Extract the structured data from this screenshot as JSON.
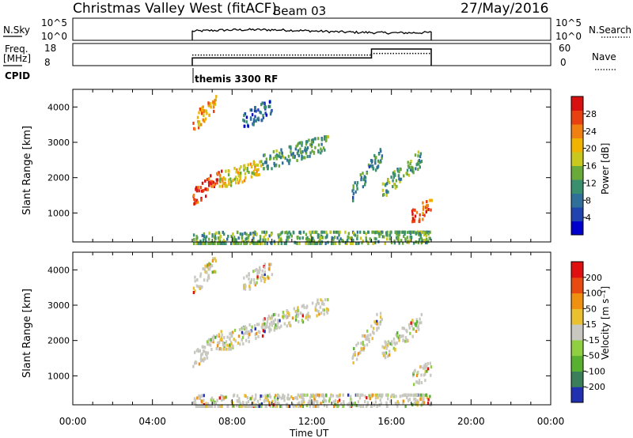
{
  "header": {
    "station": "Christmas Valley West (fitACF)",
    "beam": "Beam 03",
    "date": "27/May/2016"
  },
  "scan_panels": {
    "nsky_label": "N.Sky",
    "nsky_ticks": [
      "10^5",
      "10^0"
    ],
    "nsearch_label": "N.Search",
    "freq_label_1": "Freq.",
    "freq_label_2": "[MHz]",
    "freq_ticks": [
      "18",
      "8"
    ],
    "nave_label": "Nave",
    "nave_ticks": [
      "60",
      "0"
    ],
    "cpid_label": "CPID",
    "cpid_text": "themis 3300 RF"
  },
  "x_axis": {
    "label": "Time UT",
    "ticks": [
      "00:00",
      "04:00",
      "08:00",
      "12:00",
      "16:00",
      "20:00",
      "00:00"
    ]
  },
  "chart_data": [
    {
      "type": "heatmap",
      "panel": "power",
      "ylabel": "Slant Range [km]",
      "y_ticks": [
        "1000",
        "2000",
        "3000",
        "4000"
      ],
      "ylim": [
        180,
        4500
      ],
      "xlim_hours": [
        0,
        24
      ],
      "colorbar": {
        "label": "Power [dB]",
        "ticks": [
          "28",
          "24",
          "20",
          "16",
          "12",
          "8",
          "4"
        ],
        "colors": [
          "#0000cc",
          "#1f44b0",
          "#2f6f9a",
          "#3a8f6e",
          "#6aaa3a",
          "#c8c81e",
          "#f0b400",
          "#f08010",
          "#e84010",
          "#d81010"
        ]
      },
      "regions": [
        {
          "x": [
            6.0,
            7.5
          ],
          "y": [
            1300,
            2300
          ],
          "level": 0.9
        },
        {
          "x": [
            7.3,
            9.5
          ],
          "y": [
            1800,
            2500
          ],
          "level": 0.6
        },
        {
          "x": [
            9.5,
            12.8
          ],
          "y": [
            2300,
            3200
          ],
          "level": 0.35
        },
        {
          "x": [
            6.0,
            7.2
          ],
          "y": [
            3400,
            4400
          ],
          "level": 0.7
        },
        {
          "x": [
            8.5,
            10.0
          ],
          "y": [
            3500,
            4200
          ],
          "level": 0.2
        },
        {
          "x": [
            14.0,
            15.5
          ],
          "y": [
            1300,
            3000
          ],
          "level": 0.3
        },
        {
          "x": [
            15.5,
            17.5
          ],
          "y": [
            1500,
            2800
          ],
          "level": 0.4
        },
        {
          "x": [
            17.0,
            18.0
          ],
          "y": [
            800,
            1400
          ],
          "level": 0.85
        },
        {
          "x": [
            6.0,
            18.0
          ],
          "y": [
            180,
            500
          ],
          "level": 0.4
        }
      ]
    },
    {
      "type": "heatmap",
      "panel": "velocity",
      "ylabel": "Slant Range [km]",
      "y_ticks": [
        "1000",
        "2000",
        "3000",
        "4000"
      ],
      "ylim": [
        180,
        4500
      ],
      "xlim_hours": [
        0,
        24
      ],
      "colorbar": {
        "label": "Velocity [m s⁻¹]",
        "ticks": [
          "200",
          "100",
          "50",
          "15",
          "-15",
          "-50",
          "-100",
          "-200"
        ],
        "colors": [
          "#2030b0",
          "#3a7f5a",
          "#58b030",
          "#90d040",
          "#c8c8c0",
          "#e8c030",
          "#f09010",
          "#e84a10",
          "#e01010"
        ]
      },
      "regions": [
        {
          "x": [
            6.0,
            7.5
          ],
          "y": [
            1300,
            2300
          ],
          "level": 0.5
        },
        {
          "x": [
            7.3,
            9.5
          ],
          "y": [
            1800,
            2500
          ],
          "level": 0.5
        },
        {
          "x": [
            9.5,
            12.8
          ],
          "y": [
            2300,
            3200
          ],
          "level": 0.5
        },
        {
          "x": [
            6.0,
            7.2
          ],
          "y": [
            3400,
            4400
          ],
          "level": 0.5
        },
        {
          "x": [
            8.5,
            10.0
          ],
          "y": [
            3500,
            4200
          ],
          "level": 0.5
        },
        {
          "x": [
            14.0,
            15.5
          ],
          "y": [
            1300,
            3000
          ],
          "level": 0.5
        },
        {
          "x": [
            15.5,
            17.5
          ],
          "y": [
            1500,
            2800
          ],
          "level": 0.5
        },
        {
          "x": [
            17.0,
            18.0
          ],
          "y": [
            800,
            1400
          ],
          "level": 0.5
        },
        {
          "x": [
            6.0,
            18.0
          ],
          "y": [
            180,
            500
          ],
          "level": 0.3
        }
      ]
    }
  ]
}
